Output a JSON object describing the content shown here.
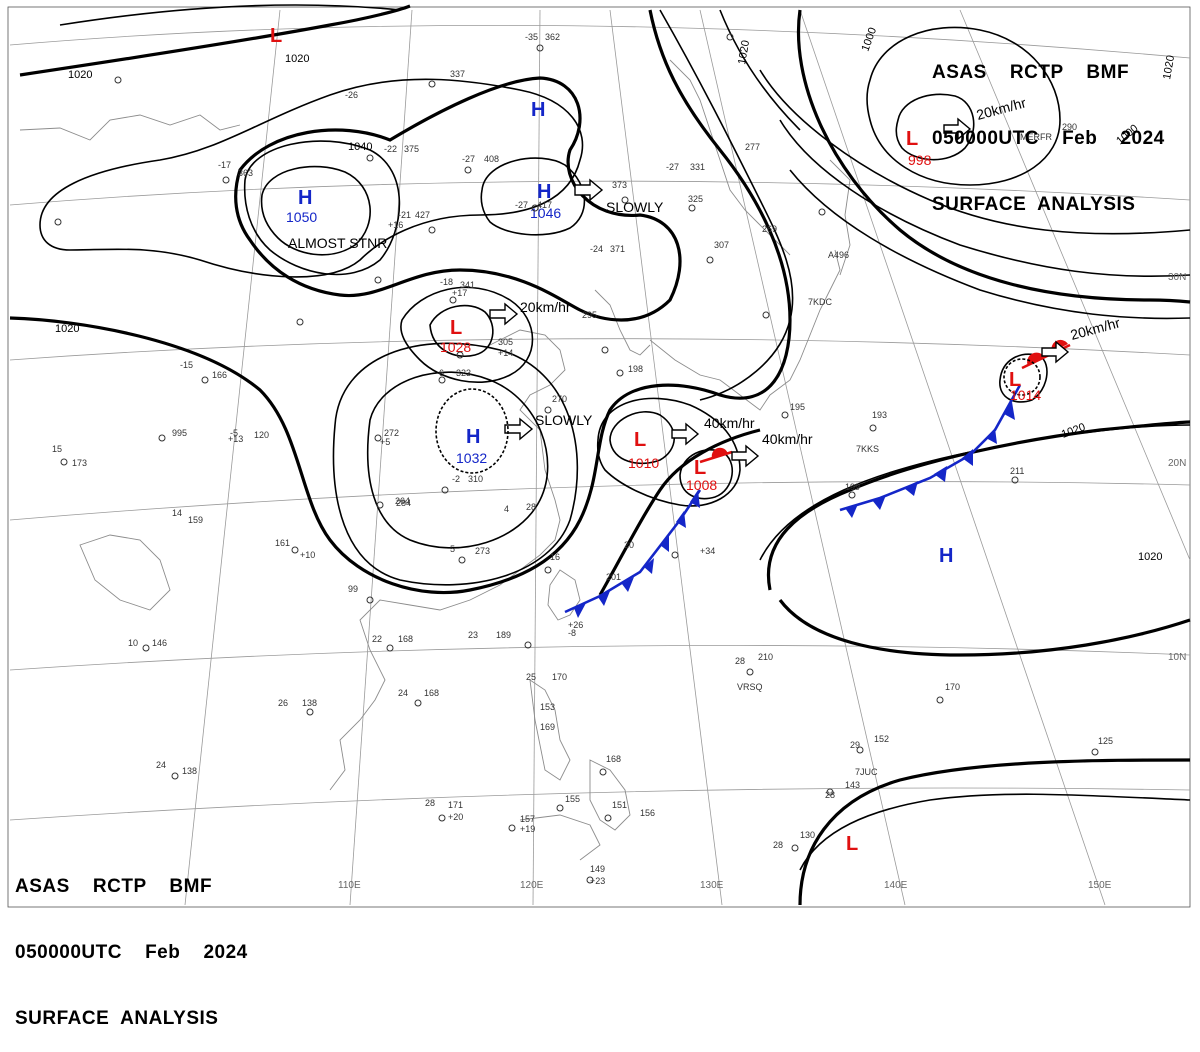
{
  "header": {
    "line1": "ASAS    RCTP    BMF",
    "line2": "050000UTC    Feb    2024",
    "line3": "SURFACE  ANALYSIS"
  },
  "isobar_labels": [
    "1020",
    "1020",
    "1020",
    "1040",
    "1000",
    "1000",
    "1020",
    "1020",
    "1020",
    "1020"
  ],
  "longitude_labels": [
    "110E",
    "120E",
    "130E",
    "140E",
    "150E"
  ],
  "latitude_labels": [
    "30N",
    "20N",
    "10N"
  ],
  "systems": [
    {
      "type": "H",
      "value": "1050",
      "note": "ALMOST STNR"
    },
    {
      "type": "H",
      "value": "1046",
      "note": "SLOWLY"
    },
    {
      "type": "H",
      "value": "1032",
      "note": "SLOWLY"
    },
    {
      "type": "H",
      "value": ""
    },
    {
      "type": "H",
      "value": ""
    },
    {
      "type": "L",
      "value": "998",
      "note": "20km/hr"
    },
    {
      "type": "L",
      "value": "1028",
      "note": "20km/hr"
    },
    {
      "type": "L",
      "value": "1010",
      "note": "40km/hr"
    },
    {
      "type": "L",
      "value": "1008",
      "note": "40km/hr"
    },
    {
      "type": "L",
      "value": "1014",
      "note": "20km/hr"
    },
    {
      "type": "L",
      "value": ""
    },
    {
      "type": "L",
      "value": ""
    }
  ],
  "stations": [
    "-35",
    "362",
    "-26",
    "337",
    "-22",
    "375",
    "-27",
    "408",
    "-27",
    "417",
    "373",
    "325",
    "-21",
    "427",
    "-17",
    "363",
    "-18",
    "341",
    "295",
    "305",
    "-6",
    "323",
    "-15",
    "166",
    "-5",
    "120",
    "995",
    "15",
    "173",
    "272",
    "264",
    "-2",
    "310",
    "270",
    "195",
    "193",
    "211",
    "199",
    "273",
    "161",
    "159",
    "99",
    "22",
    "168",
    "10",
    "146",
    "26",
    "138",
    "24",
    "168",
    "23",
    "189",
    "28",
    "210",
    "170",
    "152",
    "125",
    "25",
    "170",
    "153",
    "169",
    "168",
    "155",
    "151",
    "156",
    "149",
    "157",
    "24",
    "138",
    "28",
    "171",
    "28",
    "143",
    "28",
    "130",
    "29",
    "307",
    "269",
    "371",
    "-24",
    "290",
    "277",
    "198",
    "331",
    "-27",
    "284",
    "14",
    "5",
    "16",
    "20",
    "201",
    "4",
    "28",
    "A496",
    "7KDC",
    "7KKS",
    "VRSQ",
    "7JUC",
    "MERFR",
    "+16",
    "+13",
    "+17",
    "+14",
    "+26",
    "+19",
    "+20",
    "+23",
    "+34",
    "+10",
    "+5",
    "-8"
  ]
}
